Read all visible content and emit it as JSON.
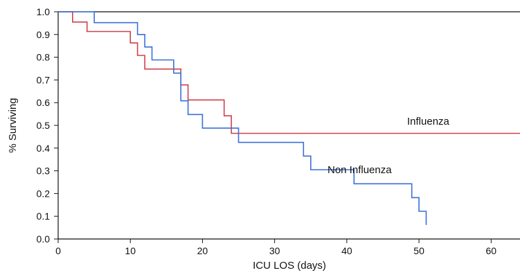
{
  "chart_data": {
    "type": "line",
    "step": true,
    "title": "",
    "xlabel": "ICU LOS (days)",
    "ylabel": "% Surviving",
    "xlim": [
      0,
      64
    ],
    "ylim": [
      0,
      1
    ],
    "x_ticks": [
      "0",
      "10",
      "20",
      "30",
      "40",
      "50",
      "60"
    ],
    "y_ticks": [
      "0.0",
      "0.1",
      "0.2",
      "0.3",
      "0.4",
      "0.5",
      "0.6",
      "0.7",
      "0.8",
      "0.9",
      "1.0"
    ],
    "grid": false,
    "series": [
      {
        "name": "Influenza",
        "color": "#d0404a",
        "points": [
          [
            0,
            1.0
          ],
          [
            2,
            0.955
          ],
          [
            4,
            0.913
          ],
          [
            10,
            0.863
          ],
          [
            11,
            0.808
          ],
          [
            12,
            0.748
          ],
          [
            17,
            0.678
          ],
          [
            18,
            0.612
          ],
          [
            23,
            0.542
          ],
          [
            24,
            0.465
          ],
          [
            64,
            0.465
          ]
        ]
      },
      {
        "name": "Non Influenza",
        "color": "#3a6fd8",
        "points": [
          [
            0,
            1.0
          ],
          [
            5,
            0.952
          ],
          [
            11,
            0.9
          ],
          [
            12,
            0.845
          ],
          [
            13,
            0.788
          ],
          [
            16,
            0.73
          ],
          [
            17,
            0.608
          ],
          [
            18,
            0.548
          ],
          [
            20,
            0.488
          ],
          [
            25,
            0.425
          ],
          [
            34,
            0.365
          ],
          [
            35,
            0.305
          ],
          [
            41,
            0.243
          ],
          [
            49,
            0.182
          ],
          [
            50,
            0.122
          ],
          [
            51,
            0.062
          ]
        ]
      }
    ]
  }
}
